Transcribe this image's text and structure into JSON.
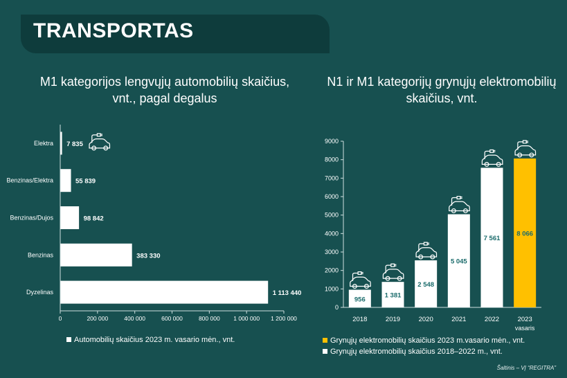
{
  "header": {
    "title": "TRANSPORTAS"
  },
  "source": "Šaltinis – VĮ “REGITRA”",
  "chart_data": [
    {
      "type": "bar",
      "orientation": "horizontal",
      "title": "M1 kategorijos lengvųjų automobilių skaičius, vnt., pagal degalus",
      "categories": [
        "Elektra",
        "Benzinas/Elektra",
        "Benzinas/Dujos",
        "Benzinas",
        "Dyzelinas"
      ],
      "value_labels": [
        "7 835",
        "55 839",
        "98 842",
        "383 330",
        "1 113 440"
      ],
      "series": [
        {
          "name": "Automobilių skaičius 2023 m. vasario mėn., vnt.",
          "values": [
            7835,
            55839,
            98842,
            383330,
            1113440
          ],
          "color": "#ffffff"
        }
      ],
      "xlim": [
        0,
        1200000
      ],
      "x_ticks": [
        0,
        200000,
        400000,
        600000,
        800000,
        1000000,
        1200000
      ],
      "x_tick_labels": [
        "0",
        "200 000",
        "400 000",
        "600 000",
        "800 000",
        "1 000 000",
        "1 200 000"
      ],
      "grid": false,
      "legend": "bottom"
    },
    {
      "type": "bar",
      "title": "N1 ir M1 kategorijų grynųjų elektromobilių skaičius, vnt.",
      "categories": [
        "2018",
        "2019",
        "2020",
        "2021",
        "2022",
        "2023"
      ],
      "category_sublabels": [
        "",
        "",
        "",
        "",
        "",
        "vasaris"
      ],
      "values": [
        956,
        1381,
        2548,
        5045,
        7561,
        8066
      ],
      "value_labels": [
        "956",
        "1 381",
        "2 548",
        "5 045",
        "7 561",
        "8 066"
      ],
      "bar_colors": [
        "#ffffff",
        "#ffffff",
        "#ffffff",
        "#ffffff",
        "#ffffff",
        "#ffc000"
      ],
      "label_color": "#1a6b6b",
      "ylim": [
        0,
        9000
      ],
      "y_ticks": [
        0,
        1000,
        2000,
        3000,
        4000,
        5000,
        6000,
        7000,
        8000,
        9000
      ],
      "grid": false,
      "legend": "bottom",
      "legend_items": [
        {
          "label": "Grynųjų elektromobilių skaičius 2023 m.vasario mėn., vnt.",
          "color": "#ffc000"
        },
        {
          "label": "Grynųjų elektromobilių skaičius 2018–2022 m., vnt.",
          "color": "#ffffff"
        }
      ]
    }
  ],
  "icons": {
    "bar_icon": "electric-car-icon"
  }
}
